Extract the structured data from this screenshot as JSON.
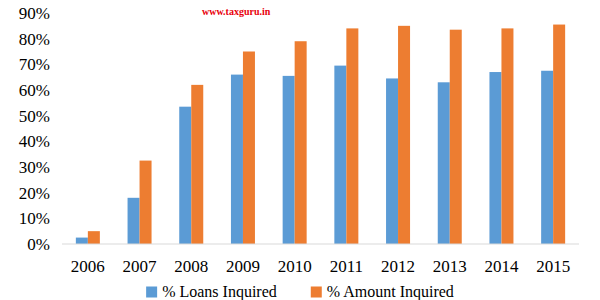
{
  "chart_data": {
    "type": "bar",
    "annotations": [
      "www.taxguru.in"
    ],
    "categories": [
      "2006",
      "2007",
      "2008",
      "2009",
      "2010",
      "2011",
      "2012",
      "2013",
      "2014",
      "2015"
    ],
    "series": [
      {
        "name": "% Loans Inquired",
        "color": "#5b9bd5",
        "values": [
          2.5,
          18,
          53.5,
          66,
          65.5,
          69.5,
          64.5,
          63,
          67,
          67.5
        ]
      },
      {
        "name": "% Amount Inquired",
        "color": "#ed7d31",
        "values": [
          5,
          32.5,
          62,
          75,
          79,
          84,
          85,
          83.5,
          84,
          85.5
        ]
      }
    ],
    "ylim": [
      0,
      90
    ],
    "yticks": [
      {
        "value": 0,
        "label": "0%"
      },
      {
        "value": 10,
        "label": "10%"
      },
      {
        "value": 20,
        "label": "20%"
      },
      {
        "value": 30,
        "label": "30%"
      },
      {
        "value": 40,
        "label": "40%"
      },
      {
        "value": 50,
        "label": "50%"
      },
      {
        "value": 60,
        "label": "60%"
      },
      {
        "value": 70,
        "label": "70%"
      },
      {
        "value": 80,
        "label": "80%"
      },
      {
        "value": 90,
        "label": "90%"
      }
    ],
    "grid": false,
    "legend": "bottom"
  }
}
